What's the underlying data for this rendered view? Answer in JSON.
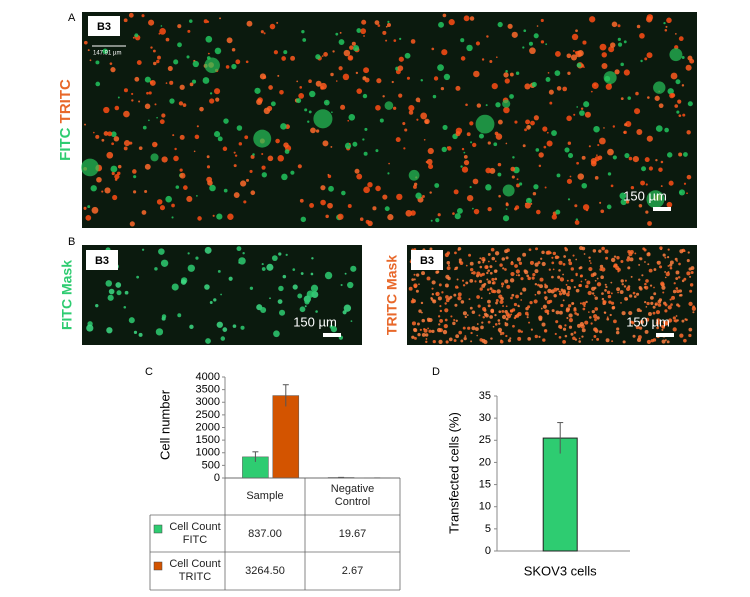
{
  "panel_labels": [
    "A",
    "B",
    "C",
    "D"
  ],
  "panel_a": {
    "channel_labels": [
      "FITC",
      "TRITC"
    ],
    "image_tag": "B3",
    "scale_label": "147.91 µm",
    "scale_bar": "150 µm"
  },
  "panel_b": {
    "fitc": {
      "label": "FITC Mask",
      "image_tag": "B3",
      "scale_bar": "150 µm"
    },
    "tritc": {
      "label": "TRITC Mask",
      "image_tag": "B3",
      "scale_bar": "150 µm"
    }
  },
  "chart_data": [
    {
      "type": "bar",
      "ylabel": "Cell number",
      "categories": [
        "Sample",
        "Negative Control"
      ],
      "series": [
        {
          "name": "Cell Count FITC",
          "color": "#2ecc71",
          "values": [
            837.0,
            19.67
          ],
          "value_labels": [
            "837.00",
            "19.67"
          ],
          "errors": [
            200,
            5
          ]
        },
        {
          "name": "Cell Count TRITC",
          "color": "#d35400",
          "values": [
            3264.5,
            2.67
          ],
          "value_labels": [
            "3264.50",
            "2.67"
          ],
          "errors": [
            430,
            1
          ]
        }
      ],
      "ylim": [
        0,
        4000
      ],
      "yticks": [
        0,
        500,
        1000,
        1500,
        2000,
        2500,
        3000,
        3500,
        4000
      ]
    },
    {
      "type": "bar",
      "ylabel": "Transfected cells (%)",
      "categories": [
        "SKOV3 cells"
      ],
      "values": [
        25.5
      ],
      "errors": [
        3.5
      ],
      "color": "#2ecc71",
      "ylim": [
        0,
        35
      ],
      "yticks": [
        0,
        5,
        10,
        15,
        20,
        25,
        30,
        35
      ]
    }
  ]
}
